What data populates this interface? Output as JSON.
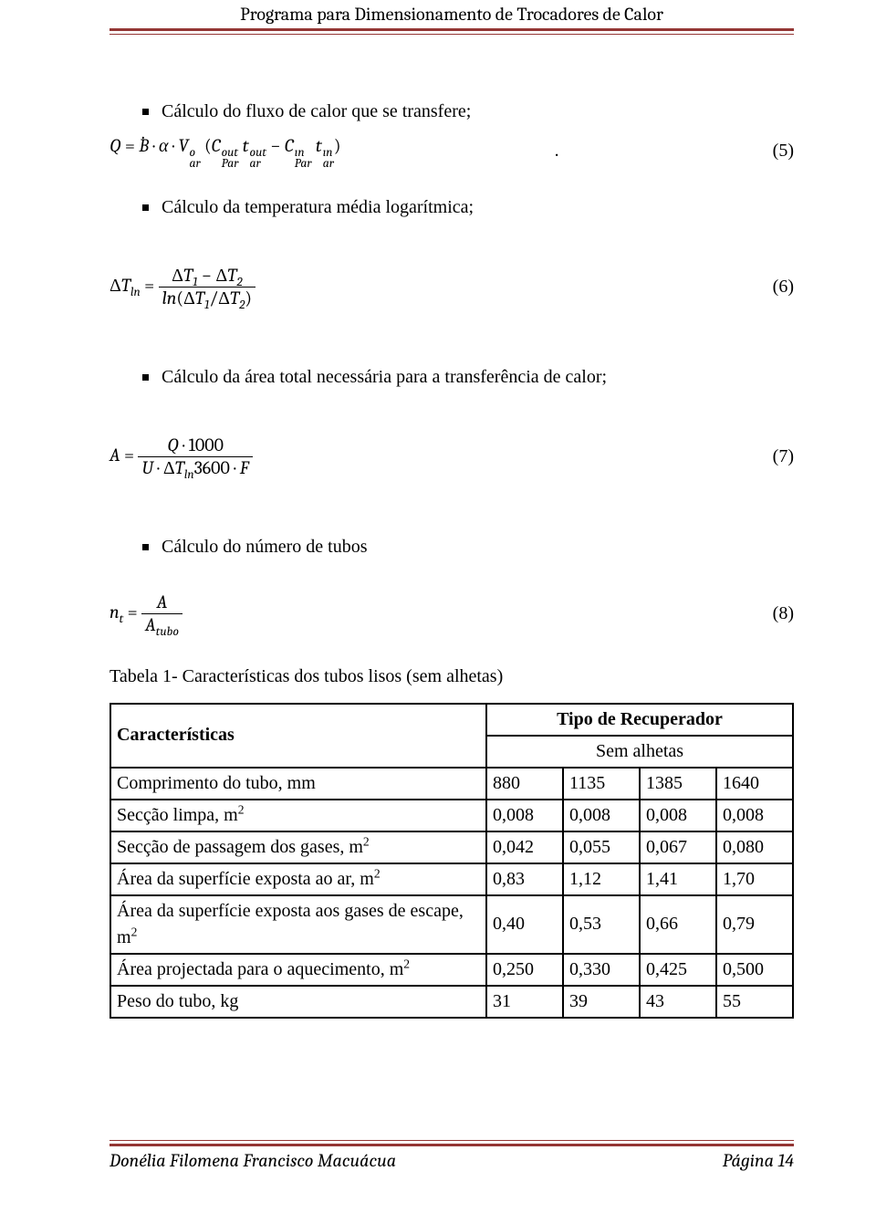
{
  "header": {
    "title": "Programa para Dimensionamento de Trocadores de Calor"
  },
  "rule_color": "#943634",
  "body": {
    "bullets": {
      "b1": "Cálculo do fluxo de calor que se transfere;",
      "b1_tail": ".",
      "b2": "Cálculo da temperatura média logarítmica;",
      "b3": "Cálculo da área total necessária para a transferência de calor;",
      "b4": "Cálculo do número de tubos"
    },
    "equations": {
      "eq5_num": "(5)",
      "eq6_num": "(6)",
      "eq7_num": "(7)",
      "eq8_num": "(8)"
    },
    "table": {
      "caption": "Tabela 1- Características dos tubos lisos (sem alhetas)",
      "header1": "Características",
      "header2": "Tipo de Recuperador",
      "header3": "Sem alhetas",
      "rows": [
        {
          "label": "Comprimento do tubo, mm",
          "c": [
            "880",
            "1135",
            "1385",
            "1640"
          ]
        },
        {
          "label": "Secção limpa, m",
          "sup": "2",
          "c": [
            "0,008",
            "0,008",
            "0,008",
            "0,008"
          ]
        },
        {
          "label": "Secção de passagem dos gases, m",
          "sup": "2",
          "c": [
            "0,042",
            "0,055",
            "0,067",
            "0,080"
          ]
        },
        {
          "label": "Área da superfície exposta ao ar, m",
          "sup": "2",
          "c": [
            "0,83",
            "1,12",
            "1,41",
            "1,70"
          ]
        },
        {
          "label": "Área da superfície exposta aos gases de escape, m",
          "sup": "2",
          "c": [
            "0,40",
            "0,53",
            "0,66",
            "0,79"
          ]
        },
        {
          "label": "Área projectada para o aquecimento, m",
          "sup": "2",
          "c": [
            "0,250",
            "0,330",
            "0,425",
            "0,500"
          ]
        },
        {
          "label": "Peso do tubo, kg",
          "c": [
            "31",
            "39",
            "43",
            "55"
          ]
        }
      ]
    }
  },
  "footer": {
    "author": "Donélia Filomena Francisco Macuácua",
    "page_label": "Página 14"
  },
  "fonts": {
    "body_family": "Times New Roman",
    "header_family": "Cambria"
  }
}
